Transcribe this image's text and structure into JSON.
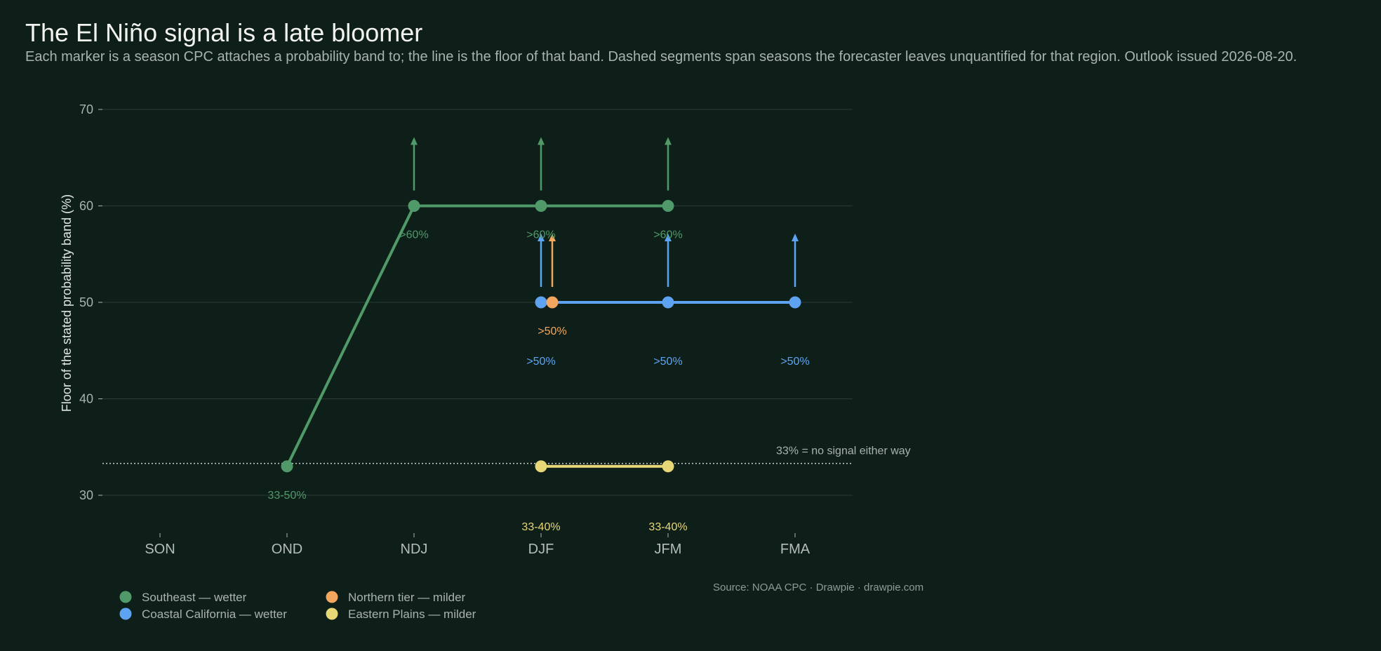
{
  "title": "The El Niño signal is a late bloomer",
  "subtitle": "Each marker is a season CPC attaches a probability band to; the line is the floor of that band. Dashed segments span seasons the forecaster leaves unquantified for that region. Outlook issued 2026-08-20.",
  "source": "Source: NOAA CPC  ·  Drawpie · drawpie.com",
  "colors": {
    "background": "#0e1f1a",
    "grid": "#2b3a35",
    "reference_line": "#c9cfcc"
  },
  "chart_data": {
    "type": "line",
    "title": "The El Niño signal is a late bloomer",
    "xlabel": "",
    "ylabel": "Floor of the stated probability band (%)",
    "categories": [
      "SON",
      "OND",
      "NDJ",
      "DJF",
      "JFM",
      "FMA"
    ],
    "ylim": [
      27,
      70
    ],
    "yticks": [
      30,
      40,
      50,
      60,
      70
    ],
    "grid": true,
    "legend_position": "bottom-left",
    "reference_line": {
      "y": 33.3,
      "style": "dotted",
      "label": "33% = no signal either way"
    },
    "series": [
      {
        "name": "Southeast — wetter",
        "color": "#4f9a68",
        "points": [
          {
            "x": "OND",
            "y": 33,
            "label": "33-50%",
            "open_upward": false
          },
          {
            "x": "NDJ",
            "y": 60,
            "label": ">60%",
            "open_upward": true
          },
          {
            "x": "DJF",
            "y": 60,
            "label": ">60%",
            "open_upward": true
          },
          {
            "x": "JFM",
            "y": 60,
            "label": ">60%",
            "open_upward": true
          }
        ]
      },
      {
        "name": "Coastal California — wetter",
        "color": "#5ea3f2",
        "points": [
          {
            "x": "DJF",
            "y": 50,
            "label": ">50%",
            "open_upward": true
          },
          {
            "x": "JFM",
            "y": 50,
            "label": ">50%",
            "open_upward": true
          },
          {
            "x": "FMA",
            "y": 50,
            "label": ">50%",
            "open_upward": true
          }
        ]
      },
      {
        "name": "Northern tier — milder",
        "color": "#f2a65e",
        "points": [
          {
            "x": "DJF",
            "y": 50,
            "label": ">50%",
            "open_upward": true
          }
        ]
      },
      {
        "name": "Eastern Plains — milder",
        "color": "#e8d776",
        "points": [
          {
            "x": "DJF",
            "y": 33,
            "label": "33-40%",
            "open_upward": false
          },
          {
            "x": "JFM",
            "y": 33,
            "label": "33-40%",
            "open_upward": false
          }
        ]
      }
    ]
  }
}
